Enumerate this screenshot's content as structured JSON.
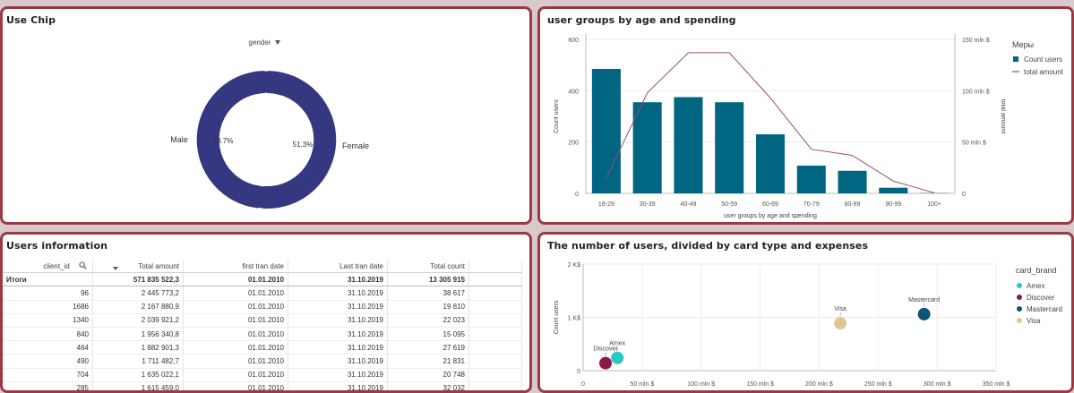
{
  "chip_panel": {
    "title": "Use Chip",
    "dropdown_label": "gender",
    "slices": [
      {
        "label": "Male",
        "pct": "48.7%",
        "value": 48.7
      },
      {
        "label": "Female",
        "pct": "51.3%",
        "value": 51.3
      }
    ],
    "color": "#353880"
  },
  "age_panel": {
    "title": "user groups by age and spending",
    "legend_title": "Меры",
    "legend_items": [
      "Count users",
      "total amount"
    ],
    "bar_color": "#006580",
    "line_color": "#9b4d6e",
    "left_axis_label": "Count users",
    "right_axis_label": "total amount",
    "x_axis_label": "user groups by age and spending",
    "left_ticks": [
      "0",
      "200",
      "400",
      "600"
    ],
    "right_ticks": [
      "0",
      "50 mln $",
      "100 mln $",
      "150 mln $"
    ]
  },
  "users_panel": {
    "title": "Users information",
    "columns": [
      "client_id",
      "Total amount",
      "first tran date",
      "Last tran date",
      "Total count"
    ],
    "totals": [
      "Итоги",
      "571 835 522,3",
      "01.01.2010",
      "31.10.2019",
      "13 305 915"
    ],
    "rows": [
      [
        "96",
        "2 445 773,2",
        "01.01.2010",
        "31.10.2019",
        "38 617"
      ],
      [
        "1686",
        "2 167 880,9",
        "01.01.2010",
        "31.10.2019",
        "19 810"
      ],
      [
        "1340",
        "2 039 921,2",
        "01.01.2010",
        "31.10.2019",
        "22 023"
      ],
      [
        "840",
        "1 956 340,8",
        "01.01.2010",
        "31.10.2019",
        "15 095"
      ],
      [
        "464",
        "1 882 901,3",
        "01.01.2010",
        "31.10.2019",
        "27 619"
      ],
      [
        "490",
        "1 711 482,7",
        "01.01.2010",
        "31.10.2019",
        "21 831"
      ],
      [
        "704",
        "1 635 022,1",
        "01.01.2010",
        "31.10.2019",
        "20 748"
      ],
      [
        "285",
        "1 615 459,0",
        "01.01.2010",
        "31.10.2019",
        "32 032"
      ]
    ]
  },
  "card_panel": {
    "title": "The number of users, divided by card type and expenses",
    "legend_title": "card_brand",
    "y_axis_label": "Count users",
    "y_ticks": [
      "0",
      "1 K$",
      "2 K$"
    ],
    "x_ticks": [
      "0",
      "50 mln $",
      "100 mln $",
      "150 mln $",
      "200 mln $",
      "250 mln $",
      "300 mln $",
      "350 mln $"
    ]
  },
  "chart_data": [
    {
      "type": "pie",
      "categories": [
        "Male",
        "Female"
      ],
      "values": [
        48.7,
        51.3
      ]
    },
    {
      "type": "bar",
      "categories": [
        "18-29",
        "30-39",
        "40-49",
        "50-59",
        "60-69",
        "70-79",
        "80-89",
        "90-99",
        "100+"
      ],
      "xlabel": "user groups by age and spending",
      "series": [
        {
          "name": "Count users",
          "axis": "left",
          "values": [
            485,
            355,
            375,
            355,
            230,
            108,
            88,
            22,
            1
          ],
          "color": "#006580"
        },
        {
          "name": "total amount",
          "axis": "right",
          "unit": "mln $",
          "values": [
            15,
            98,
            137,
            137,
            93,
            43,
            37,
            12,
            0.5
          ],
          "color": "#9b4d6e"
        }
      ],
      "ylabel": "Count users",
      "ylim": [
        0,
        600
      ],
      "y2label": "total amount",
      "y2lim": [
        0,
        150
      ],
      "legend": "right"
    },
    {
      "type": "scatter",
      "ylabel": "Count users",
      "xlim": [
        0,
        350
      ],
      "ylim": [
        0,
        2
      ],
      "x_unit": "mln $",
      "y_unit": "K$",
      "legend": "right",
      "series": [
        {
          "name": "Amex",
          "x": 29,
          "y": 0.24,
          "color": "#2cc6c4"
        },
        {
          "name": "Discover",
          "x": 19,
          "y": 0.14,
          "color": "#8b1a4a"
        },
        {
          "name": "Mastercard",
          "x": 289,
          "y": 1.06,
          "color": "#0d5573"
        },
        {
          "name": "Visa",
          "x": 218,
          "y": 0.89,
          "color": "#e0c592"
        }
      ]
    }
  ]
}
